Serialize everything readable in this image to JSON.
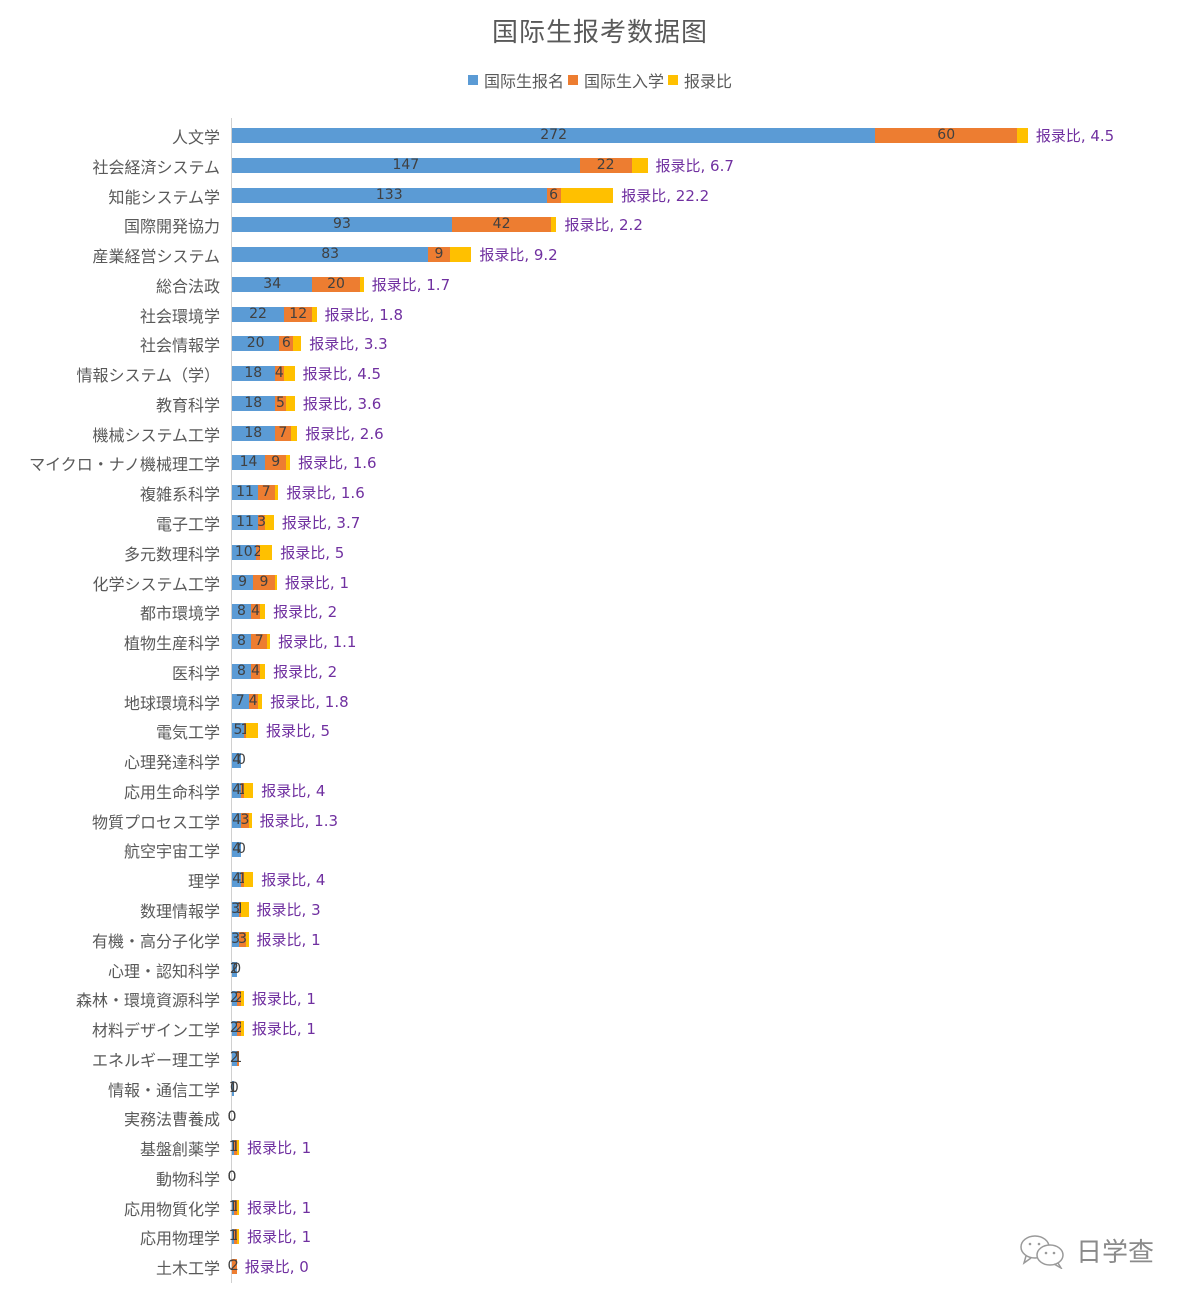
{
  "chart_data": {
    "type": "bar",
    "orientation": "horizontal",
    "stacked": true,
    "title": "国际生报考数据图",
    "xlabel": "",
    "ylabel": "",
    "legend_position": "top",
    "grid": false,
    "colors": {
      "国际生报名": "#5b9bd5",
      "国际生入学": "#ed7d31",
      "报录比": "#ffc000",
      "ratio_label": "#7030a0"
    },
    "legend": [
      "国际生报名",
      "国际生入学",
      "报录比"
    ],
    "categories": [
      "人文学",
      "社会経済システム",
      "知能システム学",
      "国際開発協力",
      "産業経営システム",
      "総合法政",
      "社会環境学",
      "社会情報学",
      "情報システム（学）",
      "教育科学",
      "機械システム工学",
      "マイクロ・ナノ機械理工学",
      "複雑系科学",
      "電子工学",
      "多元数理科学",
      "化学システム工学",
      "都市環境学",
      "植物生産科学",
      "医科学",
      "地球環境科学",
      "電気工学",
      "心理発達科学",
      "応用生命科学",
      "物質プロセス工学",
      "航空宇宙工学",
      "理学",
      "数理情報学",
      "有機・高分子化学",
      "心理・認知科学",
      "森林・環境資源科学",
      "材料デザイン工学",
      "エネルギー理工学",
      "情報・通信工学",
      "実務法曹養成",
      "基盤創薬学",
      "動物科学",
      "応用物質化学",
      "応用物理学",
      "土木工学"
    ],
    "series": [
      {
        "name": "国际生报名",
        "values": [
          272,
          147,
          133,
          93,
          83,
          34,
          22,
          20,
          18,
          18,
          18,
          14,
          11,
          11,
          10,
          9,
          8,
          8,
          8,
          7,
          5,
          4,
          4,
          4,
          4,
          4,
          3,
          3,
          2,
          2,
          2,
          2,
          1,
          0,
          1,
          0,
          1,
          1,
          0
        ]
      },
      {
        "name": "国际生入学",
        "values": [
          60,
          22,
          6,
          42,
          9,
          20,
          12,
          6,
          4,
          5,
          7,
          9,
          7,
          3,
          2,
          9,
          4,
          7,
          4,
          4,
          1,
          0,
          1,
          3,
          0,
          1,
          1,
          3,
          0,
          2,
          2,
          1,
          0,
          0,
          1,
          0,
          1,
          1,
          2
        ]
      },
      {
        "name": "报录比",
        "values": [
          4.5,
          6.7,
          22.2,
          2.2,
          9.2,
          1.7,
          1.8,
          3.3,
          4.5,
          3.6,
          2.6,
          1.6,
          1.6,
          3.7,
          5,
          1,
          2,
          1.1,
          2,
          1.8,
          5,
          null,
          4,
          1.3,
          null,
          4,
          3,
          1,
          null,
          1,
          1,
          null,
          null,
          null,
          1,
          null,
          1,
          1,
          0
        ]
      }
    ]
  },
  "title": "国际生报考数据图",
  "legend": [
    {
      "label": "国际生报名",
      "color": "#5b9bd5"
    },
    {
      "label": "国际生入学",
      "color": "#ed7d31"
    },
    {
      "label": "报录比",
      "color": "#ffc000"
    }
  ],
  "ratio_prefix": "报录比, ",
  "watermark": "日学查"
}
